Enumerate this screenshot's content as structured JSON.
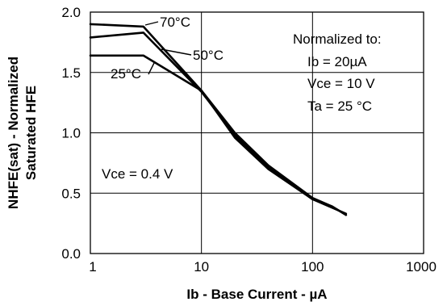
{
  "chart_data": {
    "type": "line",
    "title": "",
    "xlabel": "Ib - Base Current - µA",
    "ylabel": [
      "NHFE(sat) - Normalized",
      "Saturated HFE"
    ],
    "x_scale": "log",
    "xlim": [
      1,
      1000
    ],
    "ylim": [
      0,
      2.0
    ],
    "x_ticks": [
      {
        "value": 1,
        "label": "1"
      },
      {
        "value": 10,
        "label": "10"
      },
      {
        "value": 100,
        "label": "100"
      },
      {
        "value": 1000,
        "label": "1000"
      }
    ],
    "y_ticks": [
      {
        "value": 0,
        "label": "0.0"
      },
      {
        "value": 0.5,
        "label": "0.5"
      },
      {
        "value": 1.0,
        "label": "1.0"
      },
      {
        "value": 1.5,
        "label": "1.5"
      },
      {
        "value": 2.0,
        "label": "2.0"
      }
    ],
    "grid": true,
    "series": [
      {
        "name": "70°C",
        "x": [
          1,
          3,
          10,
          20,
          40,
          100,
          150,
          200
        ],
        "y": [
          1.9,
          1.88,
          1.35,
          1.0,
          0.73,
          0.46,
          0.39,
          0.32
        ]
      },
      {
        "name": "50°C",
        "x": [
          1,
          3,
          10,
          20,
          40,
          100,
          150,
          200
        ],
        "y": [
          1.79,
          1.83,
          1.34,
          0.98,
          0.71,
          0.45,
          0.39,
          0.32
        ]
      },
      {
        "name": "25°C",
        "x": [
          1,
          3,
          10,
          20,
          40,
          100,
          150,
          200
        ],
        "y": [
          1.64,
          1.64,
          1.35,
          0.96,
          0.7,
          0.45,
          0.38,
          0.33
        ]
      }
    ],
    "annotations": {
      "normalized_lines": [
        "Normalized to:",
        "Ib =  20µA",
        "Vce = 10 V",
        "Ta = 25 °C"
      ],
      "vce_note": "Vce = 0.4 V"
    }
  }
}
